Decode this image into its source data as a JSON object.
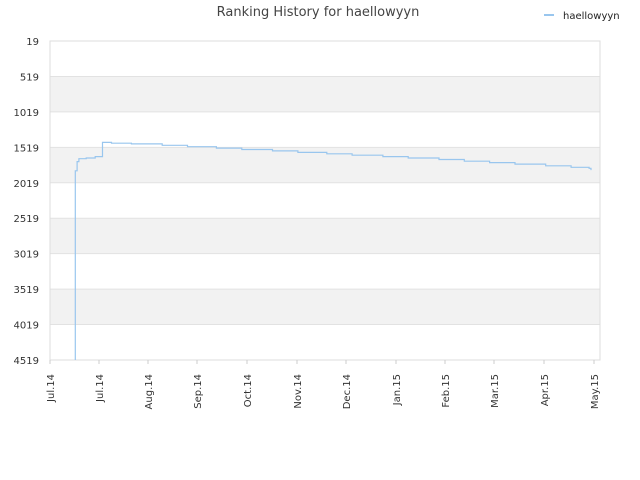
{
  "chart_data": {
    "type": "line",
    "title": "Ranking History for haellowyyn",
    "xlabel": "",
    "ylabel": "",
    "y_inverted": true,
    "ylim": [
      19,
      4519
    ],
    "y_ticks": [
      19,
      519,
      1019,
      1519,
      2019,
      2519,
      3019,
      3519,
      4019,
      4519
    ],
    "x_tick_labels": [
      "Jul.14",
      "Jul.14",
      "Aug.14",
      "Sep.14",
      "Oct.14",
      "Nov.14",
      "Dec.14",
      "Jan.15",
      "Feb.15",
      "Mar.15",
      "Apr.15",
      "May.15"
    ],
    "grid": "horizontal",
    "alternating_bands": true,
    "band_color": "#f2f2f2",
    "legend_position": "top-right",
    "series": [
      {
        "name": "haellowyyn",
        "color": "#99c6ee",
        "points": [
          {
            "x": "2014-07-15",
            "y": 4519
          },
          {
            "x": "2014-07-15",
            "y": 1850
          },
          {
            "x": "2014-07-16",
            "y": 1720
          },
          {
            "x": "2014-07-17",
            "y": 1680
          },
          {
            "x": "2014-07-21",
            "y": 1670
          },
          {
            "x": "2014-07-26",
            "y": 1650
          },
          {
            "x": "2014-07-30",
            "y": 1635
          },
          {
            "x": "2014-07-30",
            "y": 1450
          },
          {
            "x": "2014-08-04",
            "y": 1460
          },
          {
            "x": "2014-08-15",
            "y": 1470
          },
          {
            "x": "2014-09-01",
            "y": 1490
          },
          {
            "x": "2014-09-15",
            "y": 1510
          },
          {
            "x": "2014-10-01",
            "y": 1530
          },
          {
            "x": "2014-10-15",
            "y": 1550
          },
          {
            "x": "2014-11-01",
            "y": 1570
          },
          {
            "x": "2014-11-15",
            "y": 1590
          },
          {
            "x": "2014-12-01",
            "y": 1610
          },
          {
            "x": "2014-12-15",
            "y": 1630
          },
          {
            "x": "2015-01-01",
            "y": 1650
          },
          {
            "x": "2015-01-15",
            "y": 1670
          },
          {
            "x": "2015-02-01",
            "y": 1690
          },
          {
            "x": "2015-02-15",
            "y": 1715
          },
          {
            "x": "2015-03-01",
            "y": 1735
          },
          {
            "x": "2015-03-15",
            "y": 1755
          },
          {
            "x": "2015-04-01",
            "y": 1780
          },
          {
            "x": "2015-04-15",
            "y": 1800
          },
          {
            "x": "2015-04-25",
            "y": 1815
          },
          {
            "x": "2015-04-26",
            "y": 1840
          }
        ]
      }
    ]
  }
}
